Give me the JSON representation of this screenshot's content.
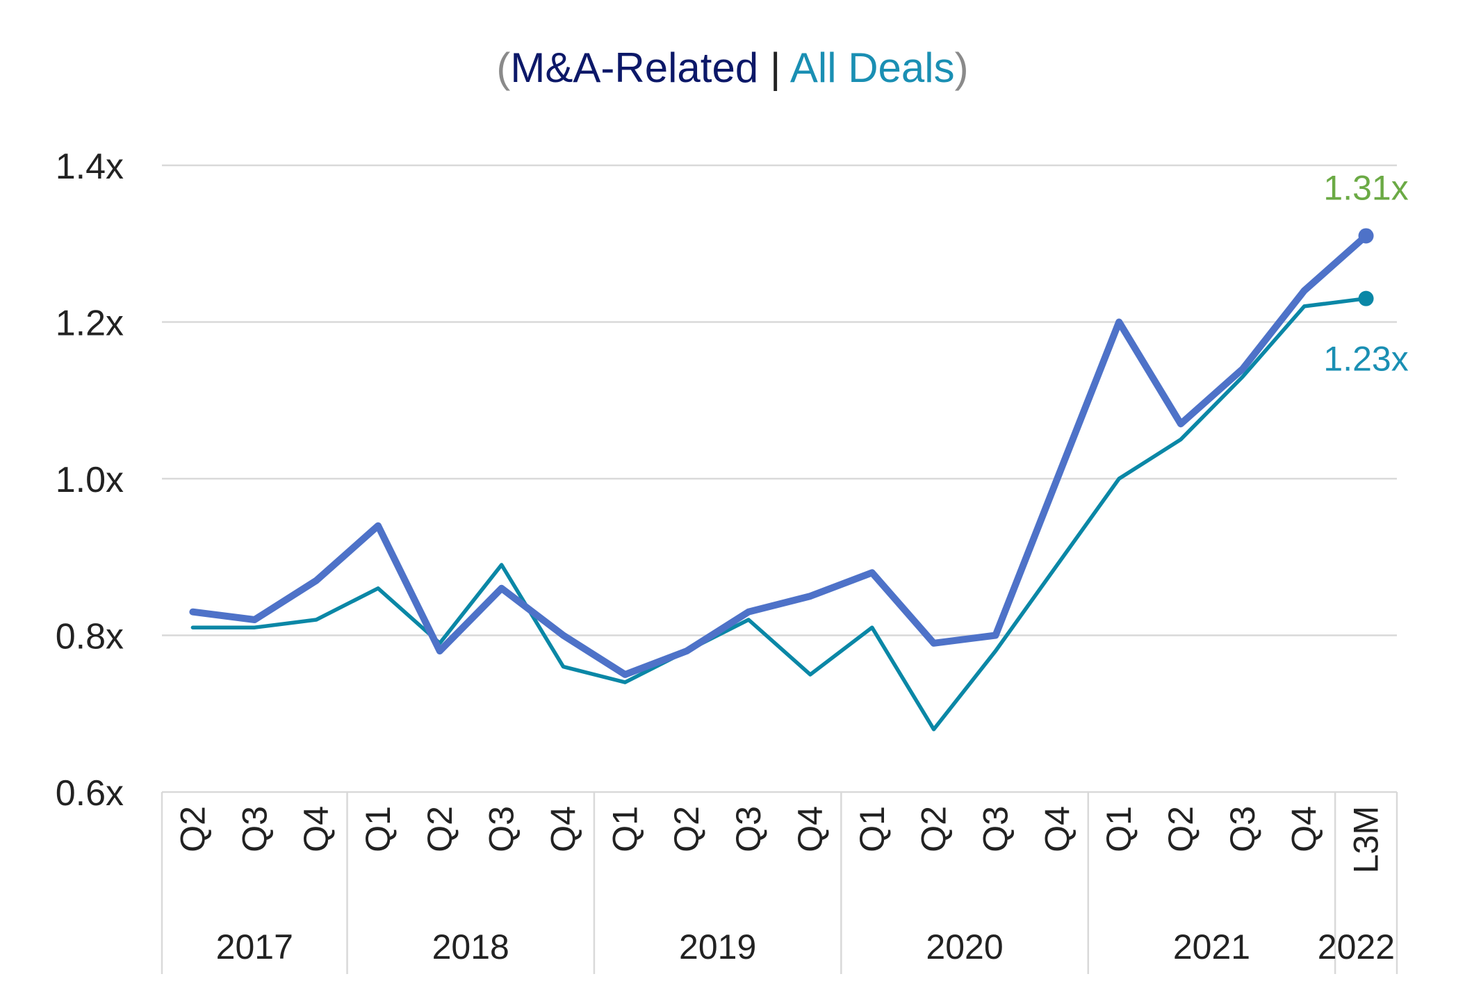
{
  "legend": {
    "open_paren": "(",
    "series1_label": "M&A-Related",
    "separator": " | ",
    "series2_label": "All Deals",
    "close_paren": ")"
  },
  "colors": {
    "ma_related": "#4E72C8",
    "all_deals": "#0A87A6",
    "legend_ma_text": "#0C1868",
    "legend_all_text": "#1A8FB3",
    "paren_text": "#8A8A8A",
    "ma_end_label": "#6BAA45",
    "all_end_label": "#1A8FB3",
    "grid": "#D9D9D9",
    "axis_text": "#222222"
  },
  "chart_data": {
    "type": "line",
    "categories": [
      "Q2",
      "Q3",
      "Q4",
      "Q1",
      "Q2",
      "Q3",
      "Q4",
      "Q1",
      "Q2",
      "Q3",
      "Q4",
      "Q1",
      "Q2",
      "Q3",
      "Q4",
      "Q1",
      "Q2",
      "Q3",
      "Q4",
      "L3M"
    ],
    "year_groups": [
      {
        "label": "2017",
        "start": 0,
        "end": 2
      },
      {
        "label": "2018",
        "start": 3,
        "end": 6
      },
      {
        "label": "2019",
        "start": 7,
        "end": 10
      },
      {
        "label": "2020",
        "start": 11,
        "end": 14
      },
      {
        "label": "2021",
        "start": 15,
        "end": 18
      },
      {
        "label": "2022",
        "start": 19,
        "end": 19
      }
    ],
    "series": [
      {
        "name": "M&A-Related",
        "values": [
          0.83,
          0.82,
          0.87,
          0.94,
          0.78,
          0.86,
          0.8,
          0.75,
          0.78,
          0.83,
          0.85,
          0.88,
          0.79,
          0.8,
          1.0,
          1.2,
          1.07,
          1.14,
          1.24,
          1.31
        ],
        "end_label": "1.31x"
      },
      {
        "name": "All Deals",
        "values": [
          0.81,
          0.81,
          0.82,
          0.86,
          0.79,
          0.89,
          0.76,
          0.74,
          0.78,
          0.82,
          0.75,
          0.81,
          0.68,
          0.78,
          0.89,
          1.0,
          1.05,
          1.13,
          1.22,
          1.23
        ],
        "end_label": "1.23x"
      }
    ],
    "y_ticks": [
      "0.6x",
      "0.8x",
      "1.0x",
      "1.2x",
      "1.4x"
    ],
    "y_tick_values": [
      0.6,
      0.8,
      1.0,
      1.2,
      1.4
    ],
    "ylim": [
      0.6,
      1.4
    ],
    "grid": true,
    "legend_position": "top-center"
  }
}
